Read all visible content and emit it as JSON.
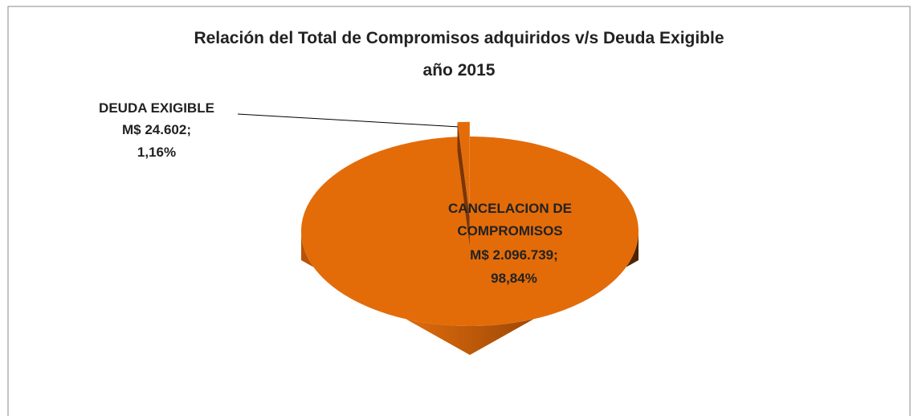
{
  "chart_data": {
    "type": "pie",
    "title": "Relación del Total de Compromisos adquiridos v/s Deuda Exigible",
    "subtitle": "año 2015",
    "categories": [
      "CANCELACION DE COMPROMISOS",
      "DEUDA EXIGIBLE"
    ],
    "values": [
      98.84,
      1.16
    ],
    "value_labels": [
      "98,84%",
      "1,16%"
    ],
    "amounts": [
      2096739,
      24602
    ],
    "amount_labels": [
      "M$ 2.096.739;",
      "M$ 24.602;"
    ],
    "color": "#e36c09"
  }
}
